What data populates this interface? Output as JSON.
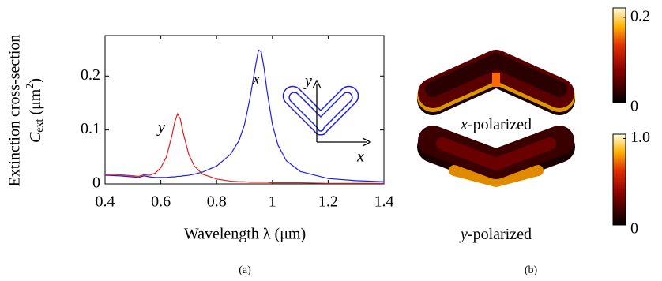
{
  "chart_data": {
    "type": "line",
    "x_label": "Wavelength λ (μm)",
    "y_label": {
      "line1": "Extinction cross-section",
      "symbol": "C",
      "subscript": "ext",
      "unit_open": " (μm",
      "superscript": "2",
      "unit_close": ")"
    },
    "x": [
      0.4,
      0.45,
      0.5,
      0.52,
      0.54,
      0.56,
      0.58,
      0.6,
      0.62,
      0.64,
      0.65,
      0.66,
      0.67,
      0.68,
      0.7,
      0.72,
      0.75,
      0.8,
      0.85,
      0.88,
      0.9,
      0.92,
      0.94,
      0.95,
      0.96,
      0.97,
      0.98,
      1.0,
      1.02,
      1.05,
      1.1,
      1.2,
      1.3,
      1.4
    ],
    "series": [
      {
        "name": "x",
        "color": "#1f1fe0",
        "values": [
          0.016,
          0.015,
          0.013,
          0.012,
          0.015,
          0.013,
          0.012,
          0.012,
          0.012,
          0.013,
          0.013,
          0.014,
          0.014,
          0.015,
          0.016,
          0.018,
          0.022,
          0.033,
          0.055,
          0.08,
          0.11,
          0.16,
          0.22,
          0.248,
          0.245,
          0.215,
          0.175,
          0.11,
          0.072,
          0.043,
          0.023,
          0.01,
          0.006,
          0.004
        ]
      },
      {
        "name": "y",
        "color": "#e01f1f",
        "values": [
          0.018,
          0.017,
          0.015,
          0.014,
          0.017,
          0.016,
          0.02,
          0.03,
          0.05,
          0.09,
          0.115,
          0.13,
          0.12,
          0.095,
          0.055,
          0.033,
          0.018,
          0.009,
          0.005,
          0.004,
          0.004,
          0.003,
          0.003,
          0.003,
          0.003,
          0.003,
          0.003,
          0.002,
          0.002,
          0.002,
          0.002,
          0.001,
          0.001,
          0.001
        ]
      }
    ],
    "xlim": [
      0.4,
      1.4
    ],
    "xticks": [
      0.4,
      0.6,
      0.8,
      1,
      1.2,
      1.4
    ],
    "ylim": [
      0,
      0.275
    ],
    "yticks": [
      0,
      0.1,
      0.2
    ],
    "inset_axes": {
      "x": "x",
      "y": "y"
    },
    "panel_label": "(a)"
  },
  "panel_b": {
    "panel_label": "(b)",
    "maps": [
      {
        "caption_symbol": "x",
        "caption_rest": "-polarized"
      },
      {
        "caption_symbol": "y",
        "caption_rest": "-polarized"
      }
    ],
    "colorbars": [
      {
        "lim": [
          0,
          0.222
        ],
        "ticks": [
          0,
          0.2
        ]
      },
      {
        "lim": [
          0,
          1.05
        ],
        "ticks": [
          0,
          {
            "value": 1,
            "label": "1.0"
          }
        ]
      }
    ]
  }
}
